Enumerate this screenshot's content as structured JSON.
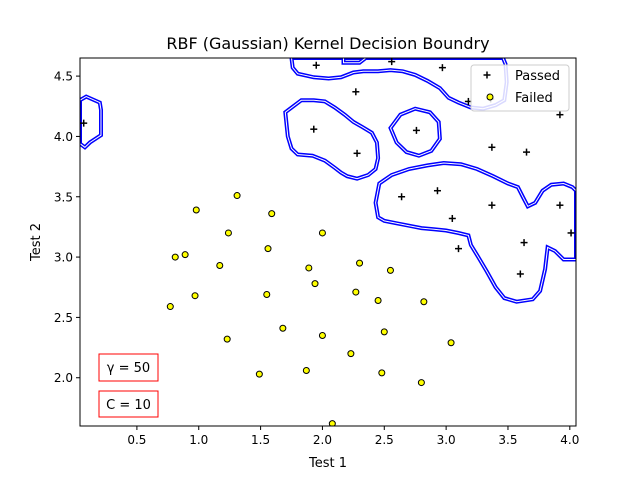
{
  "chart_data": {
    "type": "scatter",
    "title": "RBF (Gaussian)  Kernel Decision Boundry",
    "xlabel": "Test 1",
    "ylabel": "Test 2",
    "xlim": [
      0.04,
      4.05
    ],
    "ylim": [
      1.6,
      4.65
    ],
    "xticks": [
      0.5,
      1.0,
      1.5,
      2.0,
      2.5,
      3.0,
      3.5,
      4.0
    ],
    "xtick_labels": [
      "0.5",
      "1.0",
      "1.5",
      "2.0",
      "2.5",
      "3.0",
      "3.5",
      "4.0"
    ],
    "yticks": [
      2.0,
      2.5,
      3.0,
      3.5,
      4.0,
      4.5
    ],
    "ytick_labels": [
      "2.0",
      "2.5",
      "3.0",
      "3.5",
      "4.0",
      "4.5"
    ],
    "legend_position": "top-right",
    "boundary_color": "#0000ff",
    "series": [
      {
        "name": "Passed",
        "marker": "plus",
        "color": "#000000",
        "points": [
          [
            0.07,
            4.11
          ],
          [
            1.95,
            4.59
          ],
          [
            2.27,
            4.37
          ],
          [
            2.56,
            4.62
          ],
          [
            2.97,
            4.57
          ],
          [
            3.18,
            4.29
          ],
          [
            3.36,
            4.31
          ],
          [
            3.92,
            4.18
          ],
          [
            1.93,
            4.06
          ],
          [
            2.76,
            4.05
          ],
          [
            3.37,
            3.91
          ],
          [
            3.65,
            3.87
          ],
          [
            2.28,
            3.86
          ],
          [
            2.64,
            3.5
          ],
          [
            2.93,
            3.55
          ],
          [
            3.37,
            3.43
          ],
          [
            3.05,
            3.32
          ],
          [
            3.92,
            3.43
          ],
          [
            3.1,
            3.07
          ],
          [
            3.63,
            3.12
          ],
          [
            3.6,
            2.86
          ],
          [
            4.01,
            3.2
          ]
        ]
      },
      {
        "name": "Failed",
        "marker": "circle",
        "color": "#ffff00",
        "points": [
          [
            1.31,
            3.51
          ],
          [
            0.98,
            3.39
          ],
          [
            1.59,
            3.36
          ],
          [
            1.24,
            3.2
          ],
          [
            2.0,
            3.2
          ],
          [
            0.89,
            3.02
          ],
          [
            1.56,
            3.07
          ],
          [
            0.81,
            3.0
          ],
          [
            1.17,
            2.93
          ],
          [
            1.89,
            2.91
          ],
          [
            2.3,
            2.95
          ],
          [
            2.55,
            2.89
          ],
          [
            1.94,
            2.78
          ],
          [
            0.97,
            2.68
          ],
          [
            1.55,
            2.69
          ],
          [
            2.27,
            2.71
          ],
          [
            2.45,
            2.64
          ],
          [
            2.82,
            2.63
          ],
          [
            0.77,
            2.59
          ],
          [
            1.68,
            2.41
          ],
          [
            2.0,
            2.35
          ],
          [
            2.5,
            2.38
          ],
          [
            1.23,
            2.32
          ],
          [
            3.04,
            2.29
          ],
          [
            2.23,
            2.2
          ],
          [
            1.49,
            2.03
          ],
          [
            1.87,
            2.06
          ],
          [
            2.48,
            2.04
          ],
          [
            2.8,
            1.96
          ],
          [
            2.08,
            1.62
          ]
        ]
      }
    ],
    "decision_boundary": [
      [
        [
          0.04,
          4.3
        ],
        [
          0.09,
          4.33
        ],
        [
          0.2,
          4.28
        ],
        [
          0.21,
          4.22
        ],
        [
          0.21,
          4.01
        ],
        [
          0.12,
          3.95
        ],
        [
          0.08,
          3.91
        ],
        [
          0.04,
          3.94
        ]
      ],
      [
        [
          1.75,
          4.65
        ],
        [
          1.76,
          4.57
        ],
        [
          1.8,
          4.52
        ],
        [
          1.93,
          4.49
        ],
        [
          2.05,
          4.48
        ],
        [
          2.15,
          4.49
        ],
        [
          2.25,
          4.53
        ],
        [
          2.33,
          4.54
        ],
        [
          2.45,
          4.54
        ],
        [
          2.55,
          4.55
        ],
        [
          2.65,
          4.54
        ],
        [
          2.75,
          4.51
        ],
        [
          2.85,
          4.46
        ],
        [
          2.95,
          4.4
        ],
        [
          3.02,
          4.32
        ],
        [
          3.1,
          4.28
        ],
        [
          3.2,
          4.24
        ],
        [
          3.3,
          4.23
        ],
        [
          3.4,
          4.26
        ],
        [
          3.47,
          4.3
        ],
        [
          3.49,
          4.45
        ],
        [
          3.48,
          4.6
        ],
        [
          3.46,
          4.65
        ]
      ],
      [
        [
          2.17,
          4.65
        ],
        [
          2.17,
          4.61
        ],
        [
          2.3,
          4.61
        ],
        [
          2.35,
          4.65
        ]
      ],
      [
        [
          1.83,
          4.3
        ],
        [
          1.7,
          4.2
        ],
        [
          1.72,
          4.0
        ],
        [
          1.75,
          3.9
        ],
        [
          1.8,
          3.85
        ],
        [
          1.92,
          3.84
        ],
        [
          2.02,
          3.8
        ],
        [
          2.1,
          3.74
        ],
        [
          2.15,
          3.7
        ],
        [
          2.2,
          3.67
        ],
        [
          2.28,
          3.65
        ],
        [
          2.37,
          3.68
        ],
        [
          2.43,
          3.73
        ],
        [
          2.45,
          3.82
        ],
        [
          2.44,
          3.95
        ],
        [
          2.4,
          4.03
        ],
        [
          2.32,
          4.08
        ],
        [
          2.25,
          4.12
        ],
        [
          2.18,
          4.18
        ],
        [
          2.1,
          4.24
        ],
        [
          2.02,
          4.29
        ],
        [
          1.93,
          4.3
        ]
      ],
      [
        [
          2.55,
          4.07
        ],
        [
          2.6,
          3.95
        ],
        [
          2.68,
          3.87
        ],
        [
          2.78,
          3.84
        ],
        [
          2.88,
          3.88
        ],
        [
          2.95,
          3.98
        ],
        [
          2.94,
          4.12
        ],
        [
          2.87,
          4.2
        ],
        [
          2.75,
          4.23
        ],
        [
          2.63,
          4.18
        ]
      ],
      [
        [
          2.46,
          3.61
        ],
        [
          2.56,
          3.68
        ],
        [
          2.7,
          3.73
        ],
        [
          2.85,
          3.76
        ],
        [
          2.98,
          3.78
        ],
        [
          3.12,
          3.77
        ],
        [
          3.25,
          3.73
        ],
        [
          3.38,
          3.67
        ],
        [
          3.5,
          3.61
        ],
        [
          3.58,
          3.58
        ],
        [
          3.62,
          3.5
        ],
        [
          3.66,
          3.42
        ],
        [
          3.72,
          3.45
        ],
        [
          3.78,
          3.55
        ],
        [
          3.85,
          3.6
        ],
        [
          3.95,
          3.61
        ],
        [
          4.02,
          3.58
        ],
        [
          4.05,
          3.55
        ],
        [
          4.05,
          2.98
        ],
        [
          3.95,
          2.98
        ],
        [
          3.88,
          3.05
        ],
        [
          3.82,
          3.08
        ],
        [
          3.8,
          2.9
        ],
        [
          3.76,
          2.72
        ],
        [
          3.7,
          2.65
        ],
        [
          3.57,
          2.63
        ],
        [
          3.47,
          2.66
        ],
        [
          3.4,
          2.75
        ],
        [
          3.33,
          2.88
        ],
        [
          3.26,
          3.0
        ],
        [
          3.2,
          3.1
        ],
        [
          3.18,
          3.18
        ],
        [
          3.1,
          3.2
        ],
        [
          3.0,
          3.22
        ],
        [
          2.9,
          3.23
        ],
        [
          2.8,
          3.24
        ],
        [
          2.7,
          3.26
        ],
        [
          2.6,
          3.28
        ],
        [
          2.5,
          3.3
        ],
        [
          2.45,
          3.33
        ],
        [
          2.43,
          3.45
        ]
      ]
    ],
    "annotations": [
      {
        "text": "γ = 50",
        "color": "#ff0000"
      },
      {
        "text": "C = 10",
        "color": "#ff0000"
      }
    ]
  }
}
